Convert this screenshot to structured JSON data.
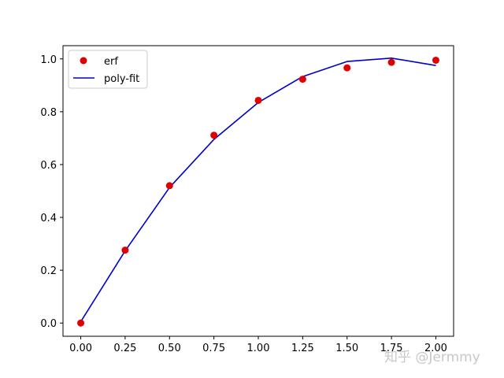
{
  "chart_data": {
    "type": "line",
    "title": "",
    "xlabel": "",
    "ylabel": "",
    "xlim": [
      -0.1,
      2.1
    ],
    "ylim": [
      -0.05,
      1.05
    ],
    "xticks": [
      0.0,
      0.25,
      0.5,
      0.75,
      1.0,
      1.25,
      1.5,
      1.75,
      2.0
    ],
    "xtick_labels": [
      "0.00",
      "0.25",
      "0.50",
      "0.75",
      "1.00",
      "1.25",
      "1.50",
      "1.75",
      "2.00"
    ],
    "yticks": [
      0.0,
      0.2,
      0.4,
      0.6,
      0.8,
      1.0
    ],
    "ytick_labels": [
      "0.0",
      "0.2",
      "0.4",
      "0.6",
      "0.8",
      "1.0"
    ],
    "grid": false,
    "legend_position": "upper-left",
    "series": [
      {
        "name": "erf",
        "kind": "scatter",
        "color": "#e00000",
        "x": [
          0.0,
          0.25,
          0.5,
          0.75,
          1.0,
          1.25,
          1.5,
          1.75,
          2.0
        ],
        "y": [
          0.0,
          0.276,
          0.52,
          0.711,
          0.843,
          0.923,
          0.966,
          0.987,
          0.995
        ]
      },
      {
        "name": "poly-fit",
        "kind": "line",
        "color": "#0000cc",
        "x": [
          0.0,
          0.25,
          0.5,
          0.75,
          1.0,
          1.25,
          1.5,
          1.75,
          2.0
        ],
        "y": [
          0.005,
          0.273,
          0.513,
          0.695,
          0.835,
          0.933,
          0.99,
          1.003,
          0.975
        ]
      }
    ]
  },
  "watermark": {
    "text": "知乎 @Jermmy"
  }
}
